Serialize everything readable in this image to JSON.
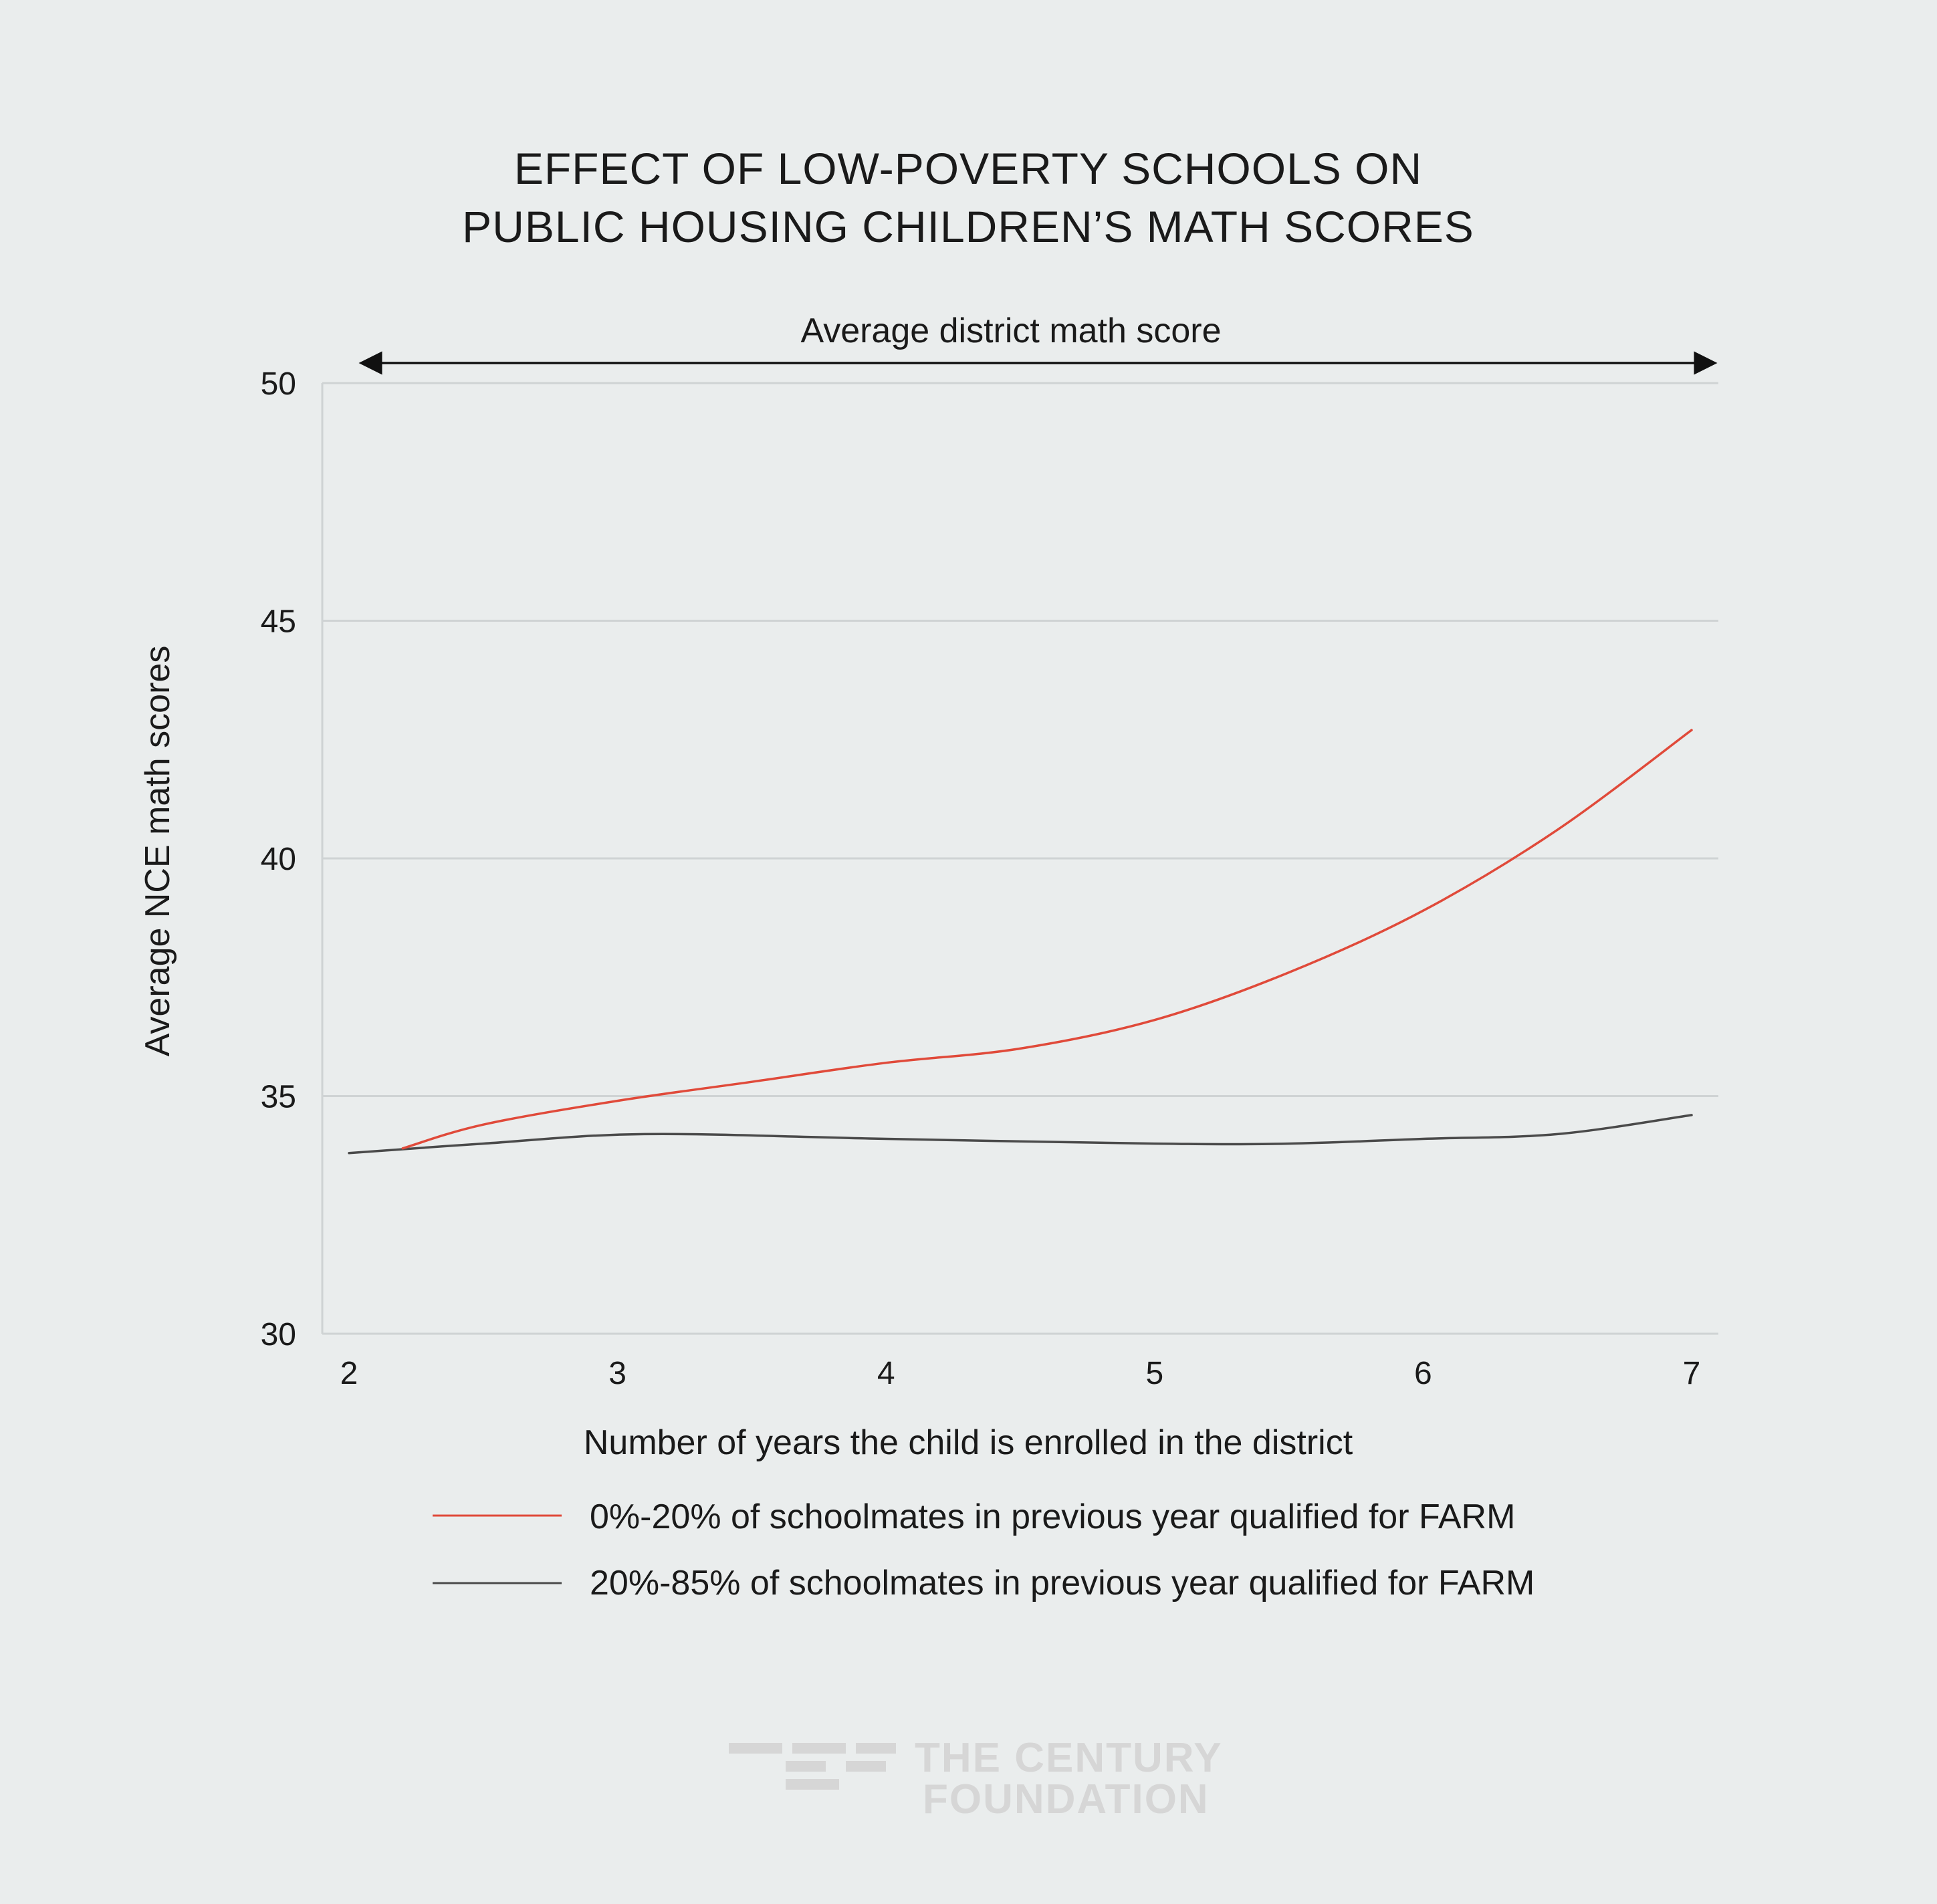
{
  "chart_data": {
    "type": "line",
    "title": [
      "EFFECT OF LOW-POVERTY SCHOOLS ON",
      "PUBLIC HOUSING CHILDREN’S MATH SCORES"
    ],
    "xlabel": "Number of years the child is enrolled in the district",
    "ylabel": "Average NCE math scores",
    "annotation": "Average district math score",
    "annotation_value": 50,
    "xlim": [
      2,
      7
    ],
    "ylim": [
      30,
      50
    ],
    "x_ticks": [
      2,
      3,
      4,
      5,
      6,
      7
    ],
    "y_ticks": [
      30,
      35,
      40,
      45,
      50
    ],
    "grid": true,
    "legend_position": "bottom",
    "series": [
      {
        "name": "0%-20% of schoolmates in previous year qualified for FARM",
        "color": "#e04a3a",
        "x": [
          2.2,
          2.5,
          3.0,
          3.5,
          4.0,
          4.5,
          5.0,
          5.5,
          6.0,
          6.5,
          7.0
        ],
        "y": [
          33.9,
          34.4,
          34.9,
          35.3,
          35.7,
          36.0,
          36.6,
          37.6,
          38.9,
          40.6,
          42.7
        ]
      },
      {
        "name": "20%-85% of schoolmates in previous year qualified for FARM",
        "color": "#4a4a4a",
        "x": [
          2.0,
          2.5,
          3.1,
          4.0,
          5.0,
          5.5,
          6.0,
          6.5,
          7.0
        ],
        "y": [
          33.8,
          34.0,
          34.2,
          34.1,
          34.0,
          34.0,
          34.1,
          34.2,
          34.6
        ]
      }
    ]
  },
  "logo": {
    "line1": "THE CENTURY",
    "line2": "FOUNDATION",
    "color": "#d6d6d6"
  }
}
